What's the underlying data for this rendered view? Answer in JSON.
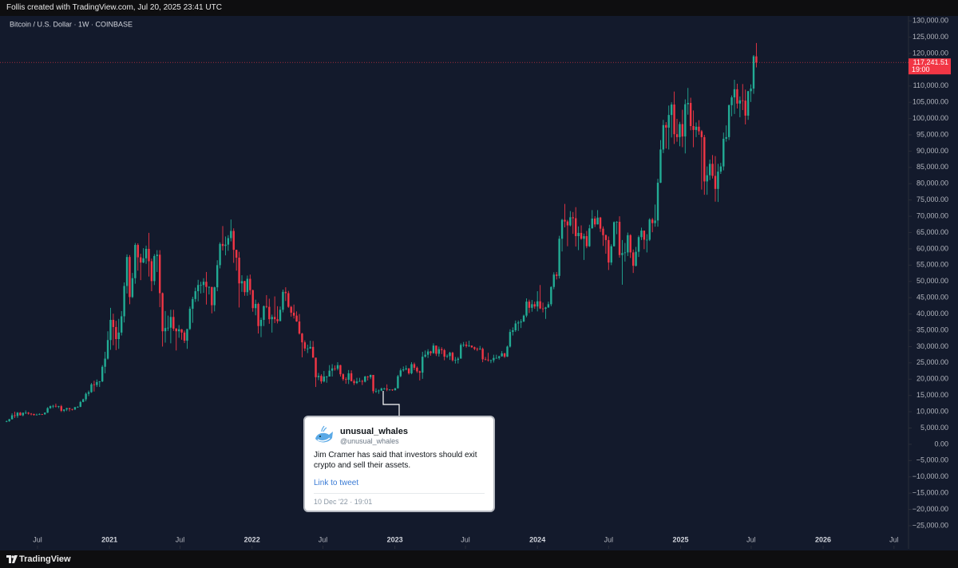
{
  "header": "Follis created with TradingView.com, Jul 20, 2025 23:41 UTC",
  "footer": "TradingView",
  "tweet": {
    "name": "unusual_whales",
    "handle": "@unusual_whales",
    "text": "Jim Cramer has said that investors should exit crypto and sell their assets.",
    "link": "Link to tweet",
    "date": "10 Dec '22 · 19:01"
  },
  "chart_data": {
    "type": "candlestick",
    "title": "Bitcoin / U.S. Dollar · 1W · COINBASE",
    "up_color": "#22ab94",
    "down_color": "#f23645",
    "close": [
      7100,
      7700,
      8900,
      8700,
      9700,
      8900,
      9700,
      9700,
      9400,
      9300,
      9000,
      9100,
      9300,
      9200,
      9700,
      11100,
      11700,
      11800,
      11600,
      11700,
      10300,
      10700,
      11100,
      10800,
      10700,
      11400,
      11500,
      13000,
      13800,
      15500,
      16000,
      18400,
      18200,
      19100,
      19300,
      23800,
      26300,
      32000,
      38200,
      36000,
      32300,
      34300,
      39300,
      48600,
      57500,
      45200,
      51000,
      61200,
      57400,
      55800,
      57100,
      60000,
      56200,
      50100,
      57800,
      58200,
      46400,
      34700,
      35700,
      35800,
      39100,
      35500,
      34700,
      35300,
      34300,
      31800,
      35400,
      41600,
      44600,
      47000,
      48900,
      48900,
      49900,
      48300,
      48300,
      42700,
      48200,
      55000,
      61500,
      60900,
      61300,
      63300,
      65500,
      59700,
      57300,
      49400,
      50100,
      46700,
      50800,
      47300,
      41800,
      43100,
      36300,
      38200,
      42400,
      42200,
      38400,
      39100,
      38400,
      37800,
      41300,
      46800,
      46400,
      42200,
      40400,
      39500,
      37700,
      34000,
      31300,
      29400,
      29400,
      29900,
      26600,
      20600,
      21000,
      19300,
      20800,
      20800,
      22600,
      23300,
      23200,
      24300,
      21500,
      20000,
      19800,
      21800,
      19400,
      18800,
      19300,
      19400,
      19200,
      20800,
      20600,
      21300,
      16300,
      16300,
      16500,
      17100,
      17100,
      16800,
      16800,
      16600,
      17200,
      20900,
      22700,
      23000,
      23300,
      21800,
      24600,
      23500,
      22400,
      22000,
      26900,
      27500,
      28500,
      28000,
      30300,
      27800,
      29200,
      28900,
      26900,
      27100,
      28100,
      25800,
      25900,
      26300,
      30500,
      30600,
      30200,
      30300,
      29800,
      29300,
      29100,
      29300,
      26100,
      26000,
      25800,
      25800,
      26500,
      26500,
      27000,
      27900,
      26900,
      30000,
      34500,
      35000,
      37100,
      37400,
      37700,
      39500,
      43800,
      41900,
      43000,
      42300,
      43900,
      41700,
      41600,
      42000,
      43000,
      48300,
      52100,
      51700,
      63100,
      68900,
      68400,
      67200,
      69700,
      69400,
      63900,
      64900,
      63100,
      63900,
      60800,
      66300,
      69300,
      67500,
      69600,
      66200,
      64200,
      62700,
      55800,
      60800,
      68200,
      68300,
      58100,
      58700,
      58900,
      64200,
      58900,
      54800,
      59100,
      63600,
      65600,
      62800,
      62800,
      69000,
      67900,
      68700,
      80300,
      90500,
      98000,
      97200,
      101100,
      104300,
      95200,
      94300,
      98300,
      94500,
      104400,
      104800,
      97700,
      96500,
      97500,
      96100,
      94300,
      80700,
      82600,
      86100,
      82400,
      78400,
      83700,
      85300,
      93800,
      94300,
      104100,
      106500,
      109000,
      104600,
      105600,
      105500,
      100900,
      108400,
      109200,
      119100,
      117200
    ],
    "high": [
      7300,
      7800,
      9500,
      10000,
      9900,
      9900,
      9700,
      10400,
      9900,
      9600,
      9400,
      9400,
      9500,
      9300,
      9800,
      11400,
      11900,
      12100,
      12500,
      11800,
      12100,
      10700,
      11200,
      11200,
      10900,
      11500,
      11700,
      13300,
      14000,
      15900,
      16500,
      18800,
      19500,
      19900,
      19400,
      24300,
      28400,
      34700,
      41900,
      40100,
      37900,
      38500,
      40900,
      49700,
      58300,
      58100,
      52600,
      61800,
      61700,
      58500,
      60200,
      61000,
      64900,
      57000,
      58400,
      59600,
      59600,
      46600,
      40900,
      39500,
      41300,
      41300,
      35700,
      36600,
      35400,
      34900,
      35400,
      42300,
      45300,
      48100,
      50500,
      49900,
      51000,
      52900,
      48500,
      48300,
      48400,
      56500,
      62000,
      67000,
      63800,
      64200,
      69000,
      66300,
      59700,
      59100,
      51900,
      50200,
      51800,
      52100,
      47500,
      44400,
      43500,
      38900,
      42600,
      45800,
      44700,
      39800,
      45400,
      42400,
      42300,
      47500,
      48200,
      47100,
      42500,
      42900,
      40800,
      40000,
      34200,
      31900,
      30600,
      31800,
      31700,
      26600,
      21900,
      21500,
      22500,
      21000,
      24300,
      24600,
      24200,
      25200,
      24400,
      21800,
      20600,
      22800,
      22700,
      19900,
      20400,
      20400,
      19800,
      21000,
      21000,
      21400,
      21300,
      17200,
      16800,
      17400,
      17400,
      18400,
      16900,
      16900,
      17300,
      21300,
      23300,
      23900,
      24200,
      23400,
      25200,
      25100,
      23900,
      22600,
      28400,
      28800,
      29200,
      28700,
      31000,
      30300,
      30000,
      29800,
      29300,
      27600,
      28400,
      28400,
      26800,
      26800,
      31000,
      31400,
      31500,
      31800,
      30300,
      30000,
      29700,
      30200,
      29700,
      26800,
      28100,
      26000,
      27500,
      27500,
      27200,
      28600,
      28100,
      30300,
      35300,
      35900,
      38000,
      38000,
      38400,
      39800,
      44800,
      44400,
      44300,
      43800,
      47000,
      48900,
      43500,
      42200,
      43800,
      48500,
      52800,
      52900,
      64000,
      69200,
      73800,
      68900,
      71600,
      71300,
      72800,
      66900,
      67200,
      64700,
      65500,
      67400,
      71900,
      70000,
      71900,
      69800,
      66900,
      64400,
      63800,
      61400,
      68400,
      68500,
      70000,
      62700,
      61800,
      65000,
      64500,
      59800,
      60600,
      64100,
      66500,
      65600,
      64500,
      69400,
      69500,
      73600,
      81500,
      93400,
      99600,
      98900,
      104000,
      105000,
      108300,
      99900,
      99000,
      102700,
      105900,
      109400,
      106400,
      102500,
      98800,
      99500,
      96500,
      95000,
      85300,
      87400,
      88800,
      88500,
      86100,
      86400,
      95700,
      97900,
      104300,
      107100,
      111900,
      110700,
      106800,
      110600,
      108900,
      108500,
      110500,
      119500,
      123200
    ],
    "low": [
      6800,
      6900,
      7600,
      8100,
      8100,
      8800,
      8600,
      9300,
      9100,
      8900,
      8800,
      8900,
      9000,
      9000,
      9100,
      9600,
      10900,
      11100,
      11300,
      11100,
      9900,
      9900,
      10200,
      10100,
      10400,
      10500,
      11200,
      11400,
      12900,
      13200,
      14800,
      15800,
      16200,
      17600,
      17600,
      19100,
      21800,
      26000,
      29000,
      30400,
      28900,
      29300,
      33400,
      37400,
      46300,
      43000,
      44900,
      49300,
      53300,
      50400,
      55600,
      55400,
      51500,
      47000,
      48900,
      52900,
      42100,
      30000,
      31200,
      34800,
      31000,
      34800,
      28800,
      32700,
      32100,
      31100,
      29300,
      35100,
      37300,
      43700,
      43900,
      46300,
      46500,
      42900,
      46000,
      40200,
      40800,
      47000,
      54000,
      59500,
      58000,
      59400,
      62300,
      55700,
      53300,
      42000,
      46800,
      45600,
      45600,
      45900,
      40700,
      39600,
      34000,
      32900,
      36300,
      41800,
      37000,
      34300,
      37200,
      37100,
      38100,
      40500,
      44000,
      41900,
      39200,
      38600,
      37600,
      33700,
      26700,
      28600,
      28000,
      29300,
      26600,
      17600,
      19700,
      18600,
      19000,
      18900,
      20800,
      20800,
      22600,
      22700,
      20800,
      19500,
      18600,
      18500,
      19300,
      18200,
      18500,
      19200,
      18200,
      19000,
      19600,
      20000,
      15600,
      15800,
      15500,
      16300,
      16700,
      16300,
      16500,
      16400,
      16500,
      17100,
      20600,
      22300,
      22700,
      21400,
      21500,
      22800,
      21900,
      19600,
      20100,
      26600,
      26500,
      27200,
      27800,
      27100,
      26900,
      27700,
      25800,
      26500,
      25900,
      25400,
      24800,
      24800,
      26300,
      29900,
      29700,
      29900,
      29600,
      28900,
      28600,
      29000,
      25200,
      25800,
      25400,
      24900,
      25100,
      26300,
      26000,
      26900,
      26500,
      26800,
      29700,
      33400,
      34500,
      34800,
      35700,
      37500,
      39000,
      40300,
      40700,
      41600,
      40800,
      41500,
      40500,
      38500,
      41900,
      42400,
      47600,
      50600,
      50900,
      59200,
      66600,
      60800,
      66900,
      64600,
      60700,
      59600,
      62800,
      56600,
      60200,
      60600,
      66200,
      66700,
      67500,
      65200,
      60900,
      58500,
      53500,
      55000,
      60700,
      64500,
      57300,
      49000,
      56100,
      57800,
      57200,
      52600,
      54600,
      57500,
      62700,
      59900,
      58900,
      62400,
      65100,
      66800,
      66800,
      80200,
      89400,
      90800,
      90500,
      94200,
      92200,
      92900,
      91500,
      91200,
      89300,
      101200,
      96400,
      91200,
      94300,
      95000,
      78200,
      76600,
      76600,
      81100,
      81600,
      74500,
      74400,
      83000,
      84100,
      92900,
      93400,
      100700,
      101400,
      103100,
      100400,
      102600,
      98200,
      99600,
      105100,
      107600,
      115700
    ],
    "xlim": [
      -2.4,
      329.6
    ],
    "xticks": [
      {
        "value": 11.3,
        "label": "Jul"
      },
      {
        "value": 37.6,
        "label": "2021"
      },
      {
        "value": 63.4,
        "label": "Jul"
      },
      {
        "value": 89.7,
        "label": "2022"
      },
      {
        "value": 115.6,
        "label": "Jul"
      },
      {
        "value": 141.9,
        "label": "2023"
      },
      {
        "value": 167.7,
        "label": "Jul"
      },
      {
        "value": 194,
        "label": "2024"
      },
      {
        "value": 220,
        "label": "Jul"
      },
      {
        "value": 246.3,
        "label": "2025"
      },
      {
        "value": 272.1,
        "label": "Jul"
      },
      {
        "value": 298.4,
        "label": "2026"
      },
      {
        "value": 324.3,
        "label": "Jul"
      }
    ],
    "ylim": [
      -32100,
      131500
    ],
    "yticks": [
      {
        "value": 130000,
        "label": "130,000.00"
      },
      {
        "value": 125000,
        "label": "125,000.00"
      },
      {
        "value": 120000,
        "label": "120,000.00"
      },
      {
        "value": 115000,
        "label": "115,000.00"
      },
      {
        "value": 110000,
        "label": "110,000.00"
      },
      {
        "value": 105000,
        "label": "105,000.00"
      },
      {
        "value": 100000,
        "label": "100,000.00"
      },
      {
        "value": 95000,
        "label": "95,000.00"
      },
      {
        "value": 90000,
        "label": "90,000.00"
      },
      {
        "value": 85000,
        "label": "85,000.00"
      },
      {
        "value": 80000,
        "label": "80,000.00"
      },
      {
        "value": 75000,
        "label": "75,000.00"
      },
      {
        "value": 70000,
        "label": "70,000.00"
      },
      {
        "value": 65000,
        "label": "65,000.00"
      },
      {
        "value": 60000,
        "label": "60,000.00"
      },
      {
        "value": 55000,
        "label": "55,000.00"
      },
      {
        "value": 50000,
        "label": "50,000.00"
      },
      {
        "value": 45000,
        "label": "45,000.00"
      },
      {
        "value": 40000,
        "label": "40,000.00"
      },
      {
        "value": 35000,
        "label": "35,000.00"
      },
      {
        "value": 30000,
        "label": "30,000.00"
      },
      {
        "value": 25000,
        "label": "25,000.00"
      },
      {
        "value": 20000,
        "label": "20,000.00"
      },
      {
        "value": 15000,
        "label": "15,000.00"
      },
      {
        "value": 10000,
        "label": "10,000.00"
      },
      {
        "value": 5000,
        "label": "5,000.00"
      },
      {
        "value": 0,
        "label": "0.00"
      },
      {
        "value": -5000,
        "label": "−5,000.00"
      },
      {
        "value": -10000,
        "label": "−10,000.00"
      },
      {
        "value": -15000,
        "label": "−15,000.00"
      },
      {
        "value": -20000,
        "label": "−20,000.00"
      },
      {
        "value": -25000,
        "label": "−25,000.00"
      }
    ],
    "last_price": {
      "value": 117241.51,
      "label": "117,241.51"
    },
    "countdown": "19:00"
  }
}
